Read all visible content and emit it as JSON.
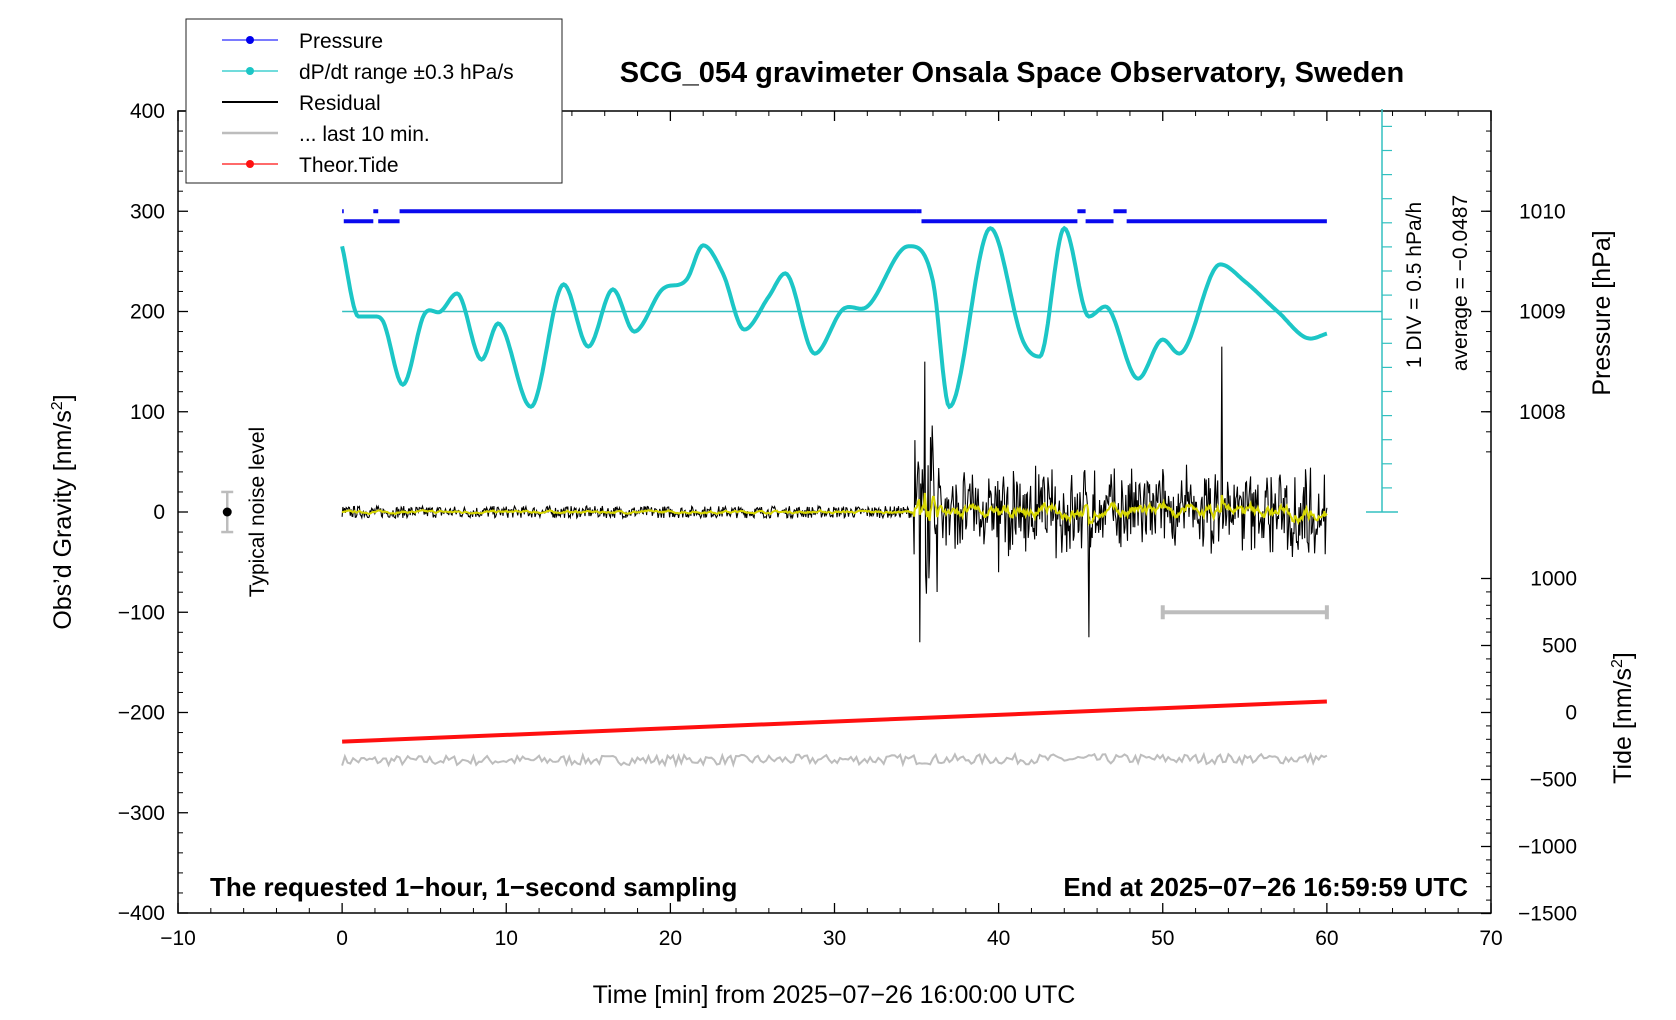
{
  "chart_data": {
    "type": "line",
    "title": "SCG_054 gravimeter Onsala Space Observatory, Sweden",
    "xlabel": "Time [min] from 2025−07−26 16:00:00 UTC",
    "ylabel_left": "Obs’d Gravity [nm/s²]",
    "ylabel_left_main": "Obs’d Gravity [nm/s",
    "ylabel_left_sup": "2",
    "ylabel_left_end": "]",
    "ylabel_right_pressure": "Pressure [hPa]",
    "ylabel_right_tide": "Tide [nm/s²]",
    "ylabel_right_tide_main": "Tide [nm/s",
    "ylabel_right_tide_sup": "2",
    "ylabel_right_tide_end": "]",
    "xlim": [
      -10,
      70
    ],
    "ylim": [
      -400,
      400
    ],
    "x_ticks": [
      "−10",
      "0",
      "10",
      "20",
      "30",
      "40",
      "50",
      "60",
      "70"
    ],
    "y_ticks": [
      "400",
      "300",
      "200",
      "100",
      "0",
      "−100",
      "−200",
      "−300",
      "−400"
    ],
    "pressure_ticks": [
      "1010",
      "1009",
      "1008"
    ],
    "tide_ticks": [
      "1000",
      "500",
      "0",
      "−500",
      "−1000",
      "−1500"
    ],
    "legend": [
      "Pressure",
      "dP/dt range ±0.3 hPa/s",
      "Residual",
      "... last 10 min.",
      "Theor.Tide"
    ],
    "annotations": {
      "left_note": "The requested 1−hour, 1−second sampling",
      "right_note": "End at 2025−07−26 16:59:59 UTC",
      "noise_label": "Typical noise level",
      "div_label": "1 DIV = 0.5 hPa/h",
      "avg_label": "average = −0.0487"
    },
    "series": [
      {
        "name": "Pressure",
        "unit": "hPa",
        "x": [
          0,
          0.1,
          1.9,
          2.2,
          3.5,
          35,
          35.3,
          44.8,
          45.3,
          47,
          47.8,
          60
        ],
        "values": [
          1010.0,
          1009.9,
          1010.0,
          1009.9,
          1010.0,
          1010.0,
          1009.9,
          1010.0,
          1009.9,
          1010.0,
          1009.9,
          1009.9
        ]
      },
      {
        "name": "dP/dt",
        "unit": "nm/s² (plotted on gravity axis)",
        "x": [
          0,
          1,
          2,
          2.5,
          3.7,
          5,
          6,
          7,
          8.5,
          9.5,
          11.5,
          13.5,
          15,
          16.5,
          17.8,
          19.5,
          21,
          22,
          23.2,
          24.5,
          26,
          27,
          28.8,
          30.5,
          32,
          34.5,
          36,
          37,
          39.5,
          41.5,
          42.5,
          44,
          45.5,
          46.5,
          48.5,
          50,
          51,
          53.5,
          55,
          57,
          59,
          60
        ],
        "values": [
          265,
          195,
          195,
          190,
          127,
          197,
          200,
          218,
          152,
          188,
          105,
          227,
          165,
          222,
          180,
          222,
          232,
          266,
          238,
          182,
          215,
          238,
          158,
          202,
          205,
          265,
          230,
          105,
          283,
          170,
          155,
          283,
          195,
          205,
          133,
          172,
          158,
          247,
          230,
          200,
          173,
          178
        ]
      },
      {
        "name": "Theor.Tide",
        "unit": "nm/s² (plotted on gravity axis)",
        "x": [
          0,
          60
        ],
        "values": [
          -229,
          -189
        ]
      },
      {
        "name": "Residual",
        "unit": "nm/s²",
        "x": [
          0,
          34.8,
          35.2,
          35.5,
          36,
          40,
          45.5,
          53.6,
          60
        ],
        "values": [
          0,
          0,
          -130,
          150,
          60,
          -60,
          -125,
          165,
          0
        ]
      },
      {
        "name": "... last 10 min.",
        "unit": "nm/s²",
        "x": [
          0,
          60
        ],
        "values": [
          -248,
          -246
        ]
      }
    ],
    "reference_levels": {
      "dpdt_reference": 200,
      "noise_level_x": -7,
      "noise_level_range": [
        -20,
        20
      ],
      "last10_bar_x": [
        50,
        60
      ],
      "last10_bar_y": -100
    }
  }
}
